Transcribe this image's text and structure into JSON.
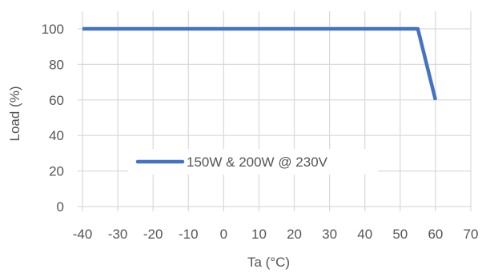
{
  "chart_data": {
    "type": "line",
    "xlabel": "Ta (°C)",
    "ylabel": "Load (%)",
    "xlim": [
      -40,
      70
    ],
    "ylim": [
      0,
      100
    ],
    "x_ticks": [
      -40,
      -30,
      -20,
      -10,
      0,
      10,
      20,
      30,
      40,
      50,
      60,
      70
    ],
    "y_ticks": [
      0,
      20,
      40,
      60,
      80,
      100
    ],
    "grid": true,
    "legend_position": "center",
    "series": [
      {
        "name": "150W & 200W @ 230V",
        "color": "#4472c4",
        "x": [
          -40,
          55,
          60
        ],
        "y": [
          100,
          100,
          60
        ]
      }
    ]
  }
}
